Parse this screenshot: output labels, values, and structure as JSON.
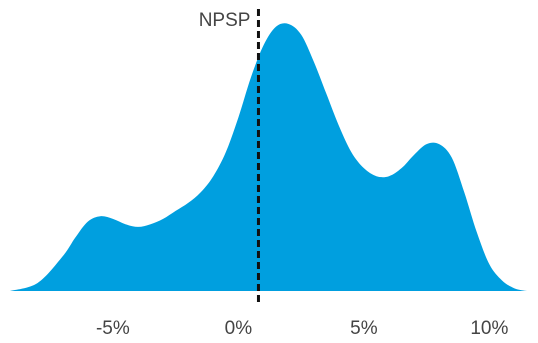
{
  "chart_data": {
    "type": "area",
    "title": "",
    "xlabel": "",
    "ylabel": "",
    "x_unit": "%",
    "xlim": [
      -9.1,
      11.5
    ],
    "ylim": [
      0,
      1
    ],
    "grid": false,
    "legend": "none",
    "series": [
      {
        "color": "#009fdf",
        "x": [
          -9.1,
          -8,
          -7,
          -6.5,
          -6,
          -5.5,
          -5,
          -4.5,
          -4,
          -3.5,
          -3,
          -2.5,
          -2,
          -1.5,
          -1,
          -0.5,
          0,
          0.5,
          1,
          1.5,
          2,
          2.5,
          3,
          3.5,
          4,
          4.5,
          5,
          5.5,
          6,
          6.5,
          7,
          7.5,
          8,
          8.5,
          9,
          9.5,
          10,
          10.5,
          11,
          11.5
        ],
        "y": [
          0.0,
          0.03,
          0.13,
          0.2,
          0.26,
          0.28,
          0.27,
          0.25,
          0.24,
          0.25,
          0.27,
          0.3,
          0.33,
          0.37,
          0.43,
          0.52,
          0.65,
          0.8,
          0.92,
          0.99,
          1.0,
          0.96,
          0.86,
          0.74,
          0.62,
          0.52,
          0.46,
          0.43,
          0.43,
          0.46,
          0.51,
          0.55,
          0.55,
          0.5,
          0.37,
          0.22,
          0.1,
          0.04,
          0.01,
          0.0
        ]
      }
    ],
    "x_ticks": [
      {
        "value": -5,
        "label": "-5%"
      },
      {
        "value": 0,
        "label": "0%"
      },
      {
        "value": 5,
        "label": "5%"
      },
      {
        "value": 10,
        "label": "10%"
      }
    ],
    "reference_line": {
      "x": 0.8,
      "label": "NPSP",
      "style": "dashed",
      "color": "#111111"
    }
  }
}
